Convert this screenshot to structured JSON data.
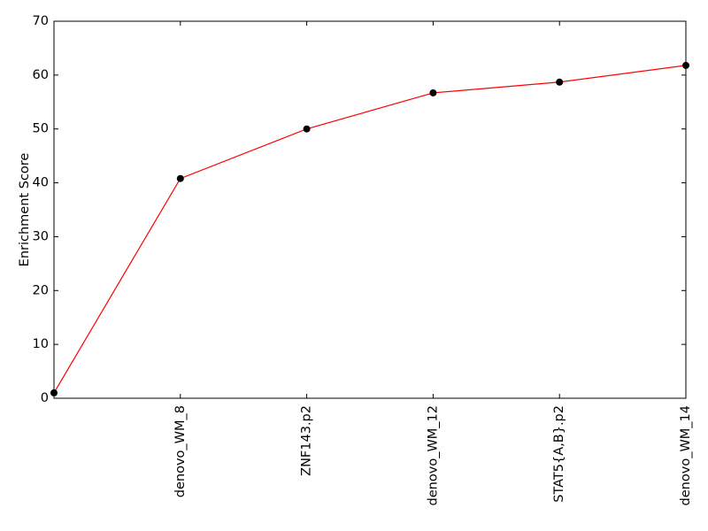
{
  "chart_data": {
    "type": "line",
    "ylabel": "Enrichment Score",
    "categories": [
      null,
      "denovo_WM_8",
      "ZNF143.p2",
      "denovo_WM_12",
      "STAT5{A,B}.p2",
      "denovo_WM_14"
    ],
    "values": [
      1.0,
      40.8,
      50.0,
      56.7,
      58.7,
      61.8
    ],
    "color": "#ff0000",
    "marker_color": "#000000",
    "ylim": [
      0,
      70
    ],
    "yticks": [
      0,
      10,
      20,
      30,
      40,
      50,
      60,
      70
    ],
    "grid": false
  }
}
